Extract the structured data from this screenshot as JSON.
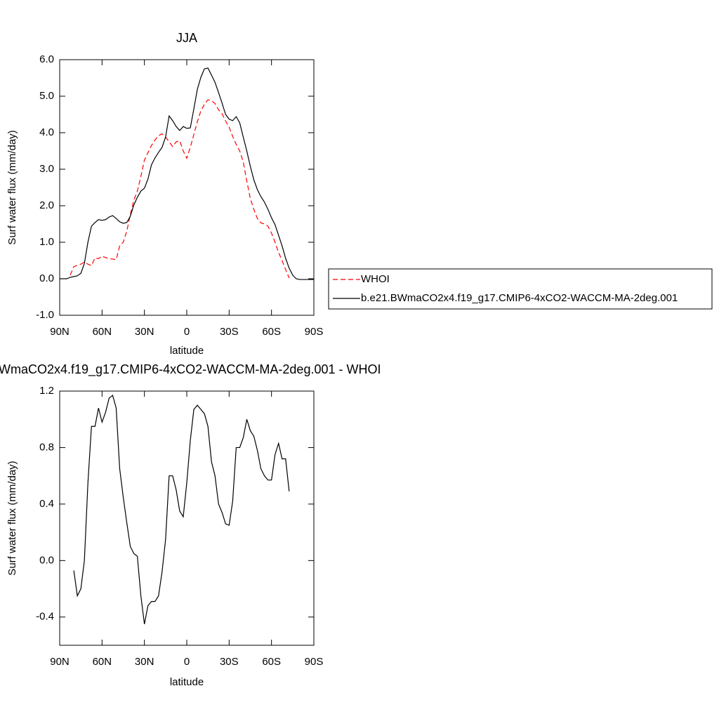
{
  "chart_data": [
    {
      "type": "line",
      "title": "JJA",
      "xlabel": "latitude",
      "ylabel": "Surf water flux (mm/day)",
      "x": [
        90,
        87.5,
        85,
        82.5,
        80,
        77.5,
        75,
        72.5,
        70,
        67.5,
        65,
        62.5,
        60,
        57.5,
        55,
        52.5,
        50,
        47.5,
        45,
        42.5,
        40,
        37.5,
        35,
        32.5,
        30,
        27.5,
        25,
        22.5,
        20,
        17.5,
        15,
        12.5,
        10,
        7.5,
        5,
        2.5,
        0,
        -2.5,
        -5,
        -7.5,
        -10,
        -12.5,
        -15,
        -17.5,
        -20,
        -22.5,
        -25,
        -27.5,
        -30,
        -32.5,
        -35,
        -37.5,
        -40,
        -42.5,
        -45,
        -47.5,
        -50,
        -52.5,
        -55,
        -57.5,
        -60,
        -62.5,
        -65,
        -67.5,
        -70,
        -72.5,
        -75,
        -77.5,
        -80,
        -82.5,
        -85,
        -87.5,
        -90
      ],
      "xlim": [
        90,
        -90
      ],
      "xticks": [
        {
          "value": 90,
          "label": "90N"
        },
        {
          "value": 60,
          "label": "60N"
        },
        {
          "value": 30,
          "label": "30N"
        },
        0,
        {
          "value": -30,
          "label": "30S"
        },
        {
          "value": -60,
          "label": "60S"
        },
        {
          "value": -90,
          "label": "90S"
        }
      ],
      "ylim": [
        -1,
        6
      ],
      "yticks": [
        {
          "value": 6,
          "label": "6.0"
        },
        {
          "value": 5,
          "label": "5.0"
        },
        {
          "value": 4,
          "label": "4.0"
        },
        {
          "value": 3,
          "label": "3.0"
        },
        {
          "value": 2,
          "label": "2.0"
        },
        {
          "value": 1,
          "label": "1.0"
        },
        {
          "value": 0,
          "label": "0.0"
        },
        {
          "value": -1,
          "label": "-1.0"
        }
      ],
      "legend": "right",
      "series": [
        {
          "name": "WHOI",
          "color": "#ff0000",
          "line_style": "dashed",
          "values": [
            null,
            null,
            null,
            0.1,
            0.33,
            0.37,
            0.4,
            0.46,
            0.4,
            0.36,
            0.57,
            0.55,
            0.62,
            0.58,
            0.55,
            0.54,
            0.52,
            0.9,
            1.0,
            1.3,
            1.75,
            2.15,
            2.4,
            2.8,
            3.25,
            3.45,
            3.65,
            3.8,
            3.92,
            3.97,
            3.88,
            3.75,
            3.62,
            3.75,
            3.78,
            3.5,
            3.3,
            3.6,
            3.95,
            4.3,
            4.6,
            4.78,
            4.9,
            4.88,
            4.8,
            4.63,
            4.52,
            4.32,
            4.15,
            3.9,
            3.68,
            3.5,
            3.2,
            2.68,
            2.2,
            1.9,
            1.65,
            1.53,
            1.5,
            1.44,
            1.25,
            1.0,
            0.72,
            0.5,
            0.25,
            0.02,
            null,
            null,
            null,
            null,
            null,
            null,
            null
          ]
        },
        {
          "name": "b.e21.BWmaCO2x4.f19_g17.CMIP6-4xCO2-WACCM-MA-2deg.001",
          "color": "#000000",
          "line_style": "solid",
          "values": [
            0,
            0,
            0,
            0.04,
            0.06,
            0.08,
            0.15,
            0.42,
            1.0,
            1.44,
            1.54,
            1.62,
            1.6,
            1.62,
            1.69,
            1.73,
            1.65,
            1.56,
            1.52,
            1.54,
            1.71,
            2.02,
            2.23,
            2.4,
            2.48,
            2.73,
            3.12,
            3.31,
            3.46,
            3.6,
            3.88,
            4.46,
            4.33,
            4.17,
            4.06,
            4.17,
            4.12,
            4.13,
            4.65,
            5.19,
            5.52,
            5.75,
            5.77,
            5.58,
            5.38,
            5.1,
            4.81,
            4.5,
            4.37,
            4.33,
            4.44,
            4.27,
            3.88,
            3.5,
            3.08,
            2.71,
            2.44,
            2.25,
            2.1,
            1.9,
            1.67,
            1.48,
            1.19,
            0.9,
            0.56,
            0.29,
            0.1,
            0,
            -0.02,
            -0.02,
            -0.02,
            -0.02,
            -0.02
          ]
        }
      ]
    },
    {
      "type": "line",
      "title": "WmaCO2x4.f19_g17.CMIP6-4xCO2-WACCM-MA-2deg.001 - WHOI",
      "xlabel": "latitude",
      "ylabel": "Surf water flux (mm/day)",
      "x": [
        90,
        87.5,
        85,
        82.5,
        80,
        77.5,
        75,
        72.5,
        70,
        67.5,
        65,
        62.5,
        60,
        57.5,
        55,
        52.5,
        50,
        47.5,
        45,
        42.5,
        40,
        37.5,
        35,
        32.5,
        30,
        27.5,
        25,
        22.5,
        20,
        17.5,
        15,
        12.5,
        10,
        7.5,
        5,
        2.5,
        0,
        -2.5,
        -5,
        -7.5,
        -10,
        -12.5,
        -15,
        -17.5,
        -20,
        -22.5,
        -25,
        -27.5,
        -30,
        -32.5,
        -35,
        -37.5,
        -40,
        -42.5,
        -45,
        -47.5,
        -50,
        -52.5,
        -55,
        -57.5,
        -60,
        -62.5,
        -65,
        -67.5,
        -70,
        -72.5,
        -75,
        -77.5,
        -80,
        -82.5,
        -85,
        -87.5,
        -90
      ],
      "xlim": [
        90,
        -90
      ],
      "xticks": [
        {
          "value": 90,
          "label": "90N"
        },
        {
          "value": 60,
          "label": "60N"
        },
        {
          "value": 30,
          "label": "30N"
        },
        0,
        {
          "value": -30,
          "label": "30S"
        },
        {
          "value": -60,
          "label": "60S"
        },
        {
          "value": -90,
          "label": "90S"
        }
      ],
      "ylim": [
        -0.6,
        1.2
      ],
      "yticks": [
        1.2,
        0.8,
        0.4,
        {
          "value": 0,
          "label": "0.0"
        },
        -0.4
      ],
      "series": [
        {
          "color": "#000000",
          "line_style": "solid",
          "values": [
            null,
            null,
            null,
            null,
            -0.07,
            -0.25,
            -0.2,
            0.0,
            0.55,
            0.95,
            0.95,
            1.08,
            0.98,
            1.05,
            1.15,
            1.17,
            1.08,
            0.65,
            0.45,
            0.27,
            0.1,
            0.05,
            0.03,
            -0.25,
            -0.45,
            -0.32,
            -0.29,
            -0.29,
            -0.25,
            -0.08,
            0.15,
            0.6,
            0.6,
            0.5,
            0.35,
            0.31,
            0.55,
            0.85,
            1.07,
            1.1,
            1.07,
            1.04,
            0.95,
            0.7,
            0.6,
            0.4,
            0.34,
            0.26,
            0.25,
            0.42,
            0.8,
            0.8,
            0.87,
            1.0,
            0.92,
            0.88,
            0.78,
            0.65,
            0.6,
            0.57,
            0.57,
            0.75,
            0.83,
            0.72,
            0.72,
            0.49,
            null,
            null,
            null,
            null,
            null,
            null,
            null
          ]
        }
      ]
    }
  ]
}
